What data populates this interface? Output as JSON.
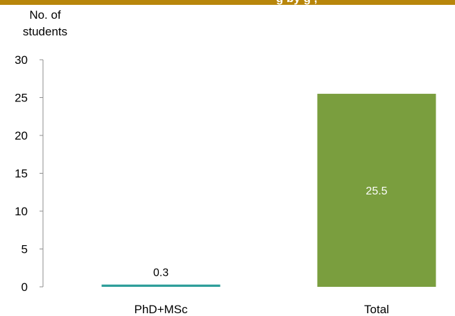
{
  "header": {
    "band_color": "#B8860B",
    "partial_title": "g    by    g  ,"
  },
  "chart_data": {
    "type": "bar",
    "ylabel_lines": [
      "No. of",
      "students"
    ],
    "categories": [
      "PhD+MSc",
      "Total"
    ],
    "values": [
      0.3,
      25.5
    ],
    "data_labels": [
      "0.3",
      "25.5"
    ],
    "bar_colors": [
      "#2E9E9A",
      "#7A9E3E"
    ],
    "label_colors": [
      "#000000",
      "#ffffff"
    ],
    "ylim": [
      0,
      30
    ],
    "yticks": [
      0,
      5,
      10,
      15,
      20,
      25,
      30
    ],
    "grid": false,
    "legend": "none"
  }
}
